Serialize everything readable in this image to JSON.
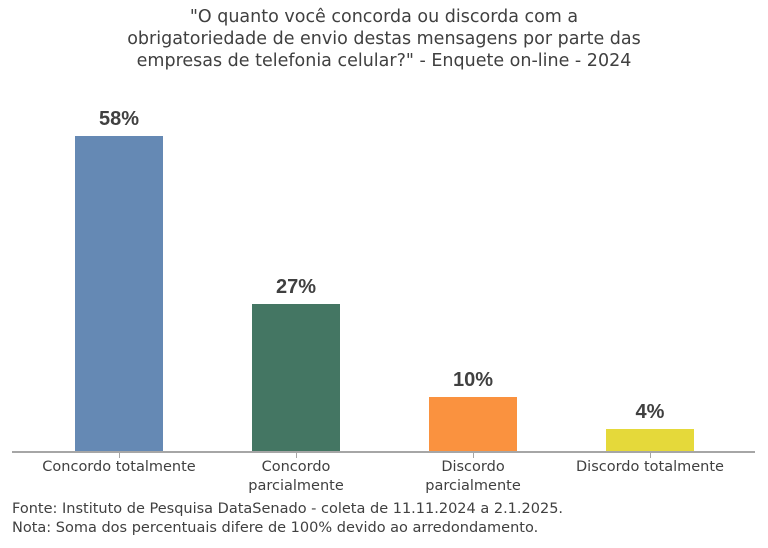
{
  "chart_data": {
    "type": "bar",
    "title": "\"O quanto você concorda ou discorda com a obrigatoriedade de envio destas mensagens por parte das empresas de telefonia celular?\" - Enquete on-line - 2024",
    "title_lines": [
      "\"O quanto você concorda ou discorda com a",
      "obrigatoriedade de envio destas mensagens por parte das",
      "empresas de telefonia celular?\" - Enquete on-line - 2024"
    ],
    "categories": [
      "Concordo totalmente",
      "Concordo parcialmente",
      "Discordo parcialmente",
      "Discordo totalmente"
    ],
    "category_lines": [
      [
        "Concordo totalmente"
      ],
      [
        "Concordo",
        "parcialmente"
      ],
      [
        "Discordo",
        "parcialmente"
      ],
      [
        "Discordo totalmente"
      ]
    ],
    "values": [
      58,
      27,
      10,
      4
    ],
    "value_labels": [
      "58%",
      "27%",
      "10%",
      "4%"
    ],
    "colors": [
      "#6589b4",
      "#447663",
      "#fa923f",
      "#e5d93a"
    ],
    "xlabel": "",
    "ylabel": "",
    "ylim": [
      0,
      58
    ],
    "grid": false,
    "legend": null
  },
  "footer": {
    "source": "Fonte: Instituto de Pesquisa DataSenado - coleta de 11.11.2024 a 2.1.2025.",
    "note": "Nota: Soma dos percentuais difere de 100% devido ao arredondamento."
  }
}
